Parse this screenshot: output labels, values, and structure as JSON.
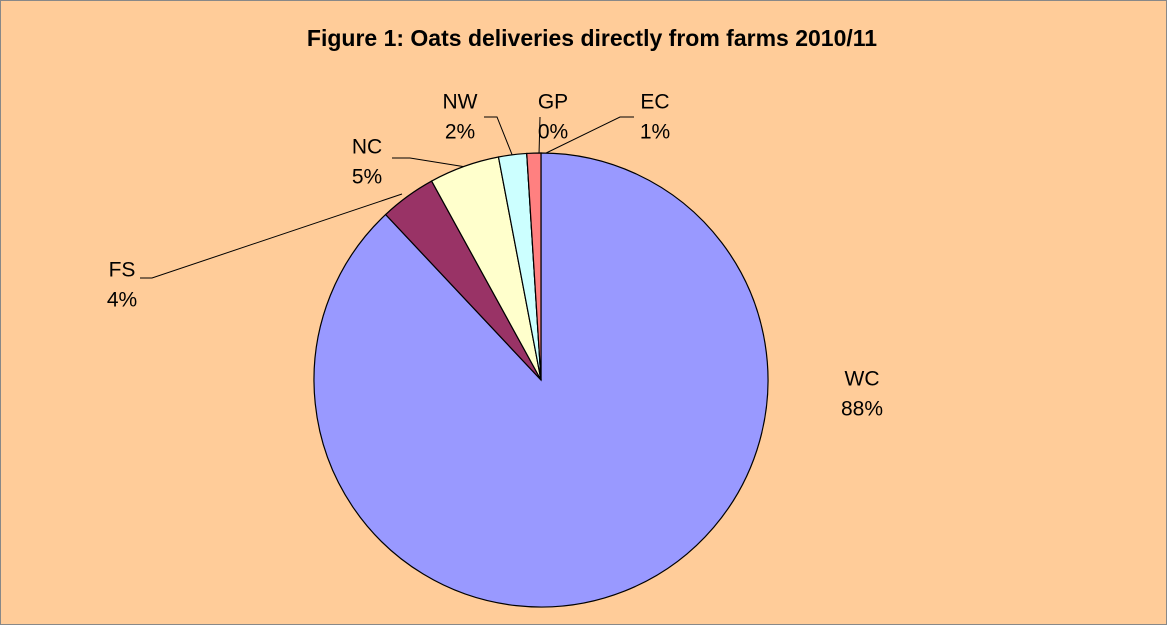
{
  "chart_data": {
    "type": "pie",
    "title": "Figure 1: Oats deliveries directly from farms 2010/11",
    "categories": [
      "WC",
      "FS",
      "NC",
      "NW",
      "GP",
      "EC"
    ],
    "values": [
      88,
      4,
      5,
      2,
      0,
      1
    ],
    "value_labels": [
      "88%",
      "4%",
      "5%",
      "2%",
      "0%",
      "1%"
    ],
    "colors": [
      "#9999ff",
      "#993366",
      "#ffffcc",
      "#ccffff",
      "#660066",
      "#ff8080"
    ]
  }
}
